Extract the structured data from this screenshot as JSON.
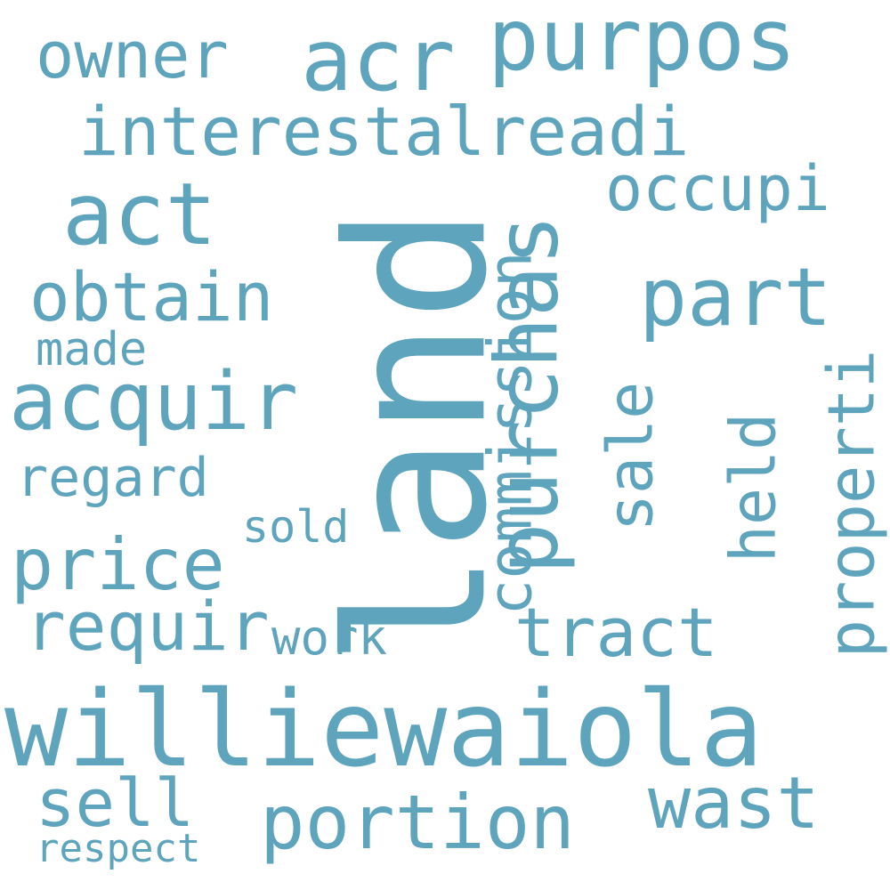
{
  "word_cloud": {
    "color": "#5fa4bd",
    "background": "#ffffff",
    "words": {
      "land": "land",
      "williewaiola": "williewaiola",
      "purpos": "purpos",
      "acr": "acr",
      "owner": "owner",
      "interestalreadi": "interestalreadi",
      "act": "act",
      "occupi": "occupi",
      "purchas": "purchas",
      "part": "part",
      "obtain": "obtain",
      "commission": "commission",
      "made": "made",
      "acquir": "acquir",
      "sale": "sale",
      "held": "held",
      "properti": "properti",
      "regard": "regard",
      "sold": "sold",
      "price": "price",
      "requir": "requir",
      "tract": "tract",
      "work": "work",
      "sell": "sell",
      "wast": "wast",
      "portion": "portion",
      "respect": "respect"
    }
  }
}
